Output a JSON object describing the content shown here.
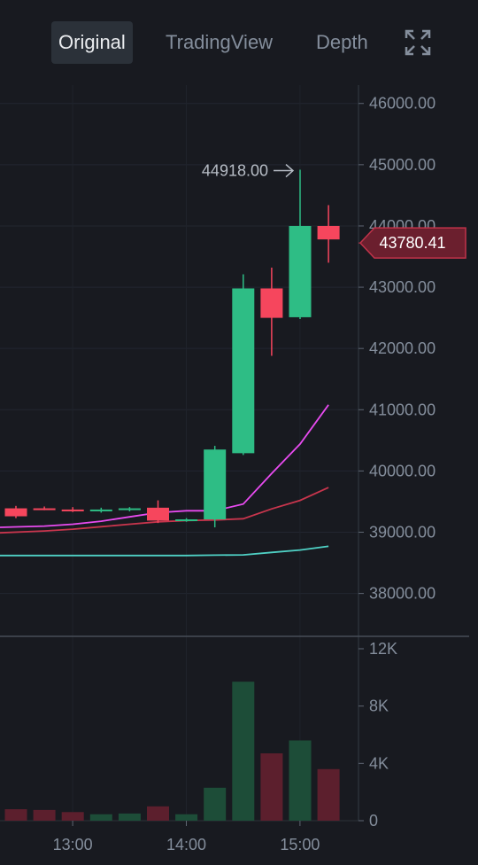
{
  "tabs": {
    "original": "Original",
    "tradingview": "TradingView",
    "depth": "Depth"
  },
  "icons": {
    "expand": "expand-icon"
  },
  "colors": {
    "up": "#2ebd85",
    "down": "#f6465d",
    "ma1": "#e84bf0",
    "ma2": "#c8354d",
    "ma3": "#4fd1c5"
  },
  "chart_data": {
    "type": "candlestick",
    "price_axis": {
      "ticks": [
        "46000.00",
        "45000.00",
        "44000.00",
        "43000.00",
        "42000.00",
        "41000.00",
        "40000.00",
        "39000.00",
        "38000.00"
      ],
      "ylim": [
        37300,
        46300
      ]
    },
    "time_axis": {
      "labels": [
        "13:00",
        "14:00",
        "15:00"
      ]
    },
    "volume_axis": {
      "ticks": [
        "12K",
        "8K",
        "4K",
        "0"
      ],
      "ylim": [
        0,
        12000
      ]
    },
    "high_marker": {
      "label": "44918.00",
      "value": 44918
    },
    "last_price": {
      "label": "43780.41",
      "value": 43780.41
    },
    "candles": [
      {
        "o": 39390,
        "h": 39430,
        "l": 39230,
        "c": 39260,
        "v": 800
      },
      {
        "o": 39390,
        "h": 39420,
        "l": 39360,
        "c": 39380,
        "v": 750
      },
      {
        "o": 39370,
        "h": 39410,
        "l": 39330,
        "c": 39360,
        "v": 600
      },
      {
        "o": 39360,
        "h": 39400,
        "l": 39320,
        "c": 39370,
        "v": 450
      },
      {
        "o": 39370,
        "h": 39410,
        "l": 39340,
        "c": 39390,
        "v": 500
      },
      {
        "o": 39400,
        "h": 39520,
        "l": 39150,
        "c": 39190,
        "v": 1000
      },
      {
        "o": 39200,
        "h": 39230,
        "l": 39170,
        "c": 39210,
        "v": 450
      },
      {
        "o": 39210,
        "h": 40410,
        "l": 39080,
        "c": 40350,
        "v": 2300
      },
      {
        "o": 40290,
        "h": 43210,
        "l": 40260,
        "c": 42980,
        "v": 9700
      },
      {
        "o": 42980,
        "h": 43320,
        "l": 41880,
        "c": 42500,
        "v": 4700
      },
      {
        "o": 42510,
        "h": 44918,
        "l": 42480,
        "c": 44000,
        "v": 5600
      },
      {
        "o": 44000,
        "h": 44340,
        "l": 43400,
        "c": 43780.41,
        "v": 3600
      }
    ],
    "ma_lines": [
      {
        "color": "#e84bf0",
        "values": [
          39080,
          39100,
          39130,
          39180,
          39250,
          39320,
          39350,
          39350,
          39460,
          39960,
          40440,
          41080
        ]
      },
      {
        "color": "#c8354d",
        "values": [
          38990,
          39020,
          39050,
          39090,
          39130,
          39170,
          39190,
          39200,
          39220,
          39380,
          39520,
          39730
        ]
      },
      {
        "color": "#4fd1c5",
        "values": [
          38620,
          38620,
          38620,
          38620,
          38620,
          38620,
          38620,
          38625,
          38630,
          38670,
          38710,
          38770
        ]
      }
    ]
  }
}
